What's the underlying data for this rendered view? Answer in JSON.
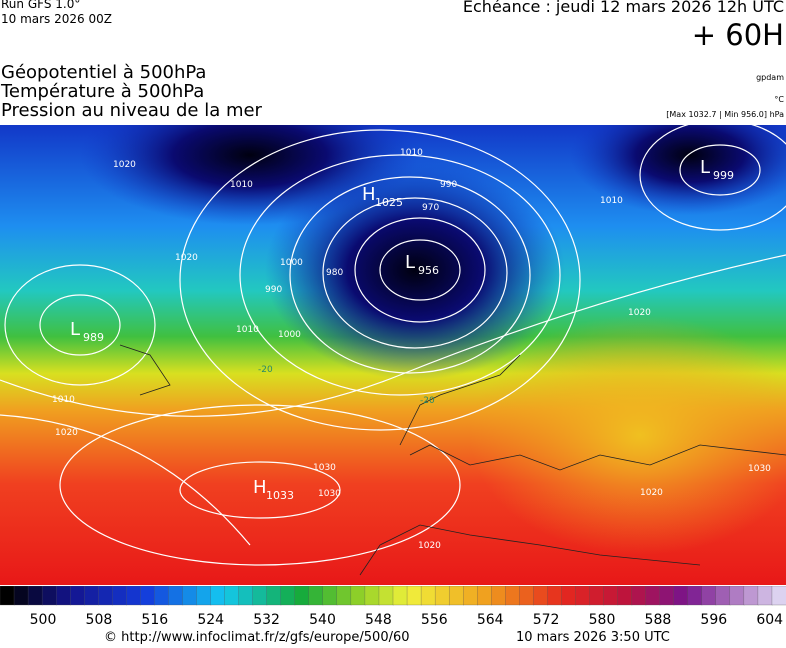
{
  "header": {
    "run": "Run GFS 1.0°",
    "run_date": "10 mars 2026 00Z",
    "valid": "Echéance : jeudi 12 mars 2026 12h UTC",
    "lead": "+ 60H",
    "fields": [
      "Géopotentiel à 500hPa",
      "Température à 500hPa",
      "Pression au niveau de la mer"
    ],
    "units": [
      "gpdam",
      "°C",
      "[Max 1032.7 | Min 956.0] hPa"
    ]
  },
  "map": {
    "centers": [
      {
        "letter": "H",
        "value": 1025
      },
      {
        "letter": "L",
        "value": 956
      },
      {
        "letter": "L",
        "value": 999
      },
      {
        "letter": "L",
        "value": 989
      },
      {
        "letter": "H",
        "value": 1033
      }
    ],
    "isobar_labels": [
      1020,
      1010,
      1020,
      990,
      1000,
      970,
      980,
      990,
      1010,
      1000,
      1010,
      1010,
      1020,
      1030,
      1030,
      1020,
      1010,
      1020,
      1030,
      1020
    ],
    "temperature_labels": [
      -20,
      -20
    ]
  },
  "colorbar": {
    "ticks": [
      500,
      508,
      516,
      524,
      532,
      540,
      548,
      556,
      564,
      572,
      580,
      588,
      596,
      604
    ]
  },
  "footer": {
    "source": "© http://www.infoclimat.fr/z/gfs/europe/500/60",
    "generated": "10 mars 2026  3:50 UTC"
  }
}
